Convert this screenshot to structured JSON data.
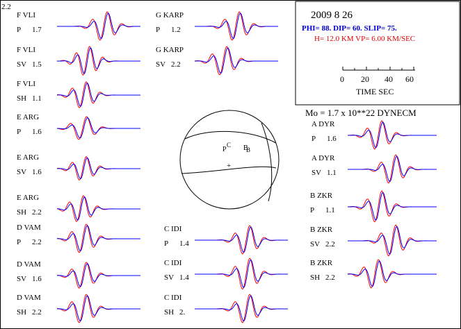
{
  "corner_label": "2.2",
  "info_box": {
    "date": "2009  8 26",
    "mechanism": "PHI=  88. DIP= 60. SLIP=  75.",
    "velocity": "H= 12.0 KM  VP= 6.00 KM/SEC",
    "scale_ticks": [
      "0",
      "20",
      "40",
      "60"
    ],
    "scale_label": "TIME   SEC"
  },
  "moment": "Mo =  1.7 x 10**22 DYNECM",
  "focal_sphere": {
    "labels": [
      "P",
      "C",
      "B",
      "B",
      "+"
    ]
  },
  "colors": {
    "observed": "#ff0000",
    "synthetic": "#0000ff",
    "text": "#000000",
    "info_blue": "#0000cc",
    "info_red": "#dd0000"
  },
  "traces": [
    {
      "station": "F VLI",
      "phase": "P",
      "amp": "1.7"
    },
    {
      "station": "F VLI",
      "phase": "SV",
      "amp": "1.5"
    },
    {
      "station": "F VLI",
      "phase": "SH",
      "amp": "1.1"
    },
    {
      "station": "E ARG",
      "phase": "P",
      "amp": "1.6"
    },
    {
      "station": "E ARG",
      "phase": "SV",
      "amp": "1.6"
    },
    {
      "station": "E ARG",
      "phase": "SH",
      "amp": "2.2"
    },
    {
      "station": "D VAM",
      "phase": "P",
      "amp": "2.2"
    },
    {
      "station": "D VAM",
      "phase": "SV",
      "amp": "1.6"
    },
    {
      "station": "D VAM",
      "phase": "SH",
      "amp": "2.2"
    },
    {
      "station": "G KARP",
      "phase": "P",
      "amp": "1.2"
    },
    {
      "station": "G KARP",
      "phase": "SV",
      "amp": "2.2"
    },
    {
      "station": "C IDI",
      "phase": "P",
      "amp": "1.4"
    },
    {
      "station": "C IDI",
      "phase": "SV",
      "amp": "1.4"
    },
    {
      "station": "C IDI",
      "phase": "SH",
      "amp": "2."
    },
    {
      "station": "A DYR",
      "phase": "P",
      "amp": "1.6"
    },
    {
      "station": "A DYR",
      "phase": "SV",
      "amp": "1.1"
    },
    {
      "station": "B ZKR",
      "phase": "P",
      "amp": "1.1"
    },
    {
      "station": "B ZKR",
      "phase": "SV",
      "amp": "2.2"
    },
    {
      "station": "B ZKR",
      "phase": "SH",
      "amp": "2.2"
    }
  ]
}
